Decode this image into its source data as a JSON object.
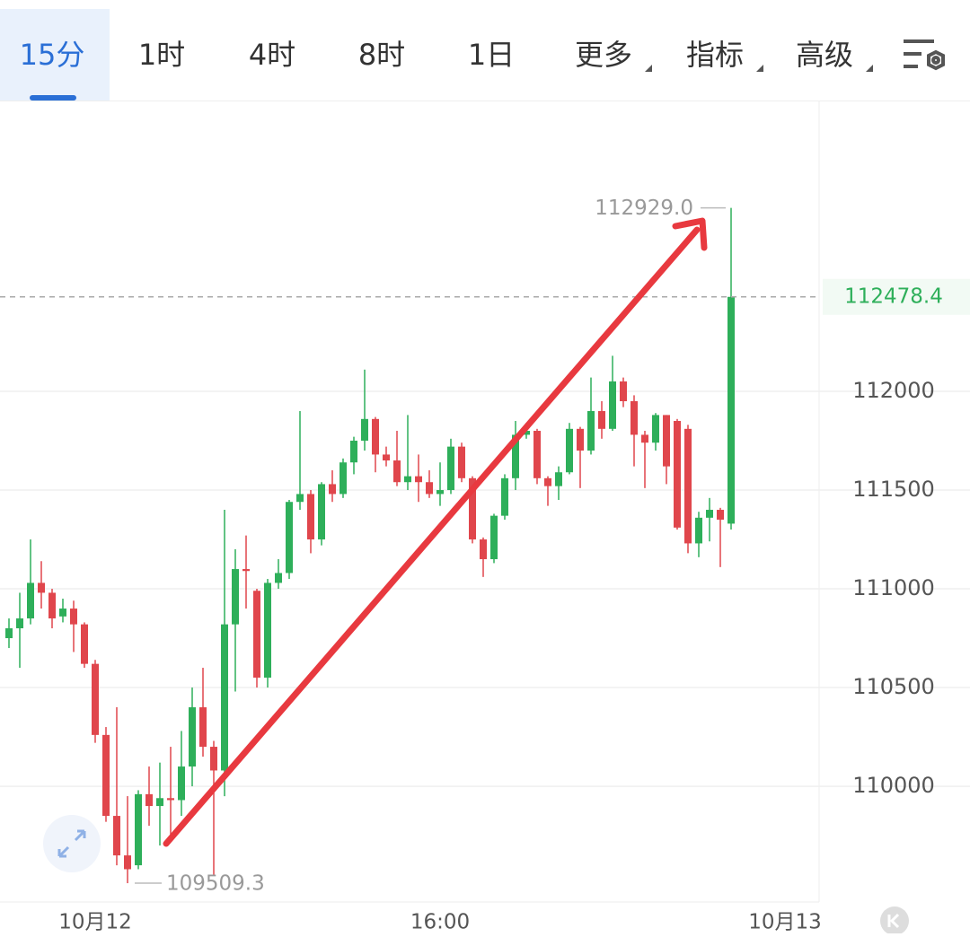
{
  "tabs": [
    "15分",
    "1时",
    "4时",
    "8时",
    "1日",
    "更多",
    "指标",
    "高级"
  ],
  "active_tab": 0,
  "dropdown_tabs": [
    5,
    6,
    7
  ],
  "chart_data": {
    "type": "candlestick",
    "categories": [
      null,
      null,
      null,
      null,
      null,
      null,
      null,
      null,
      "10月12",
      null,
      null,
      null,
      null,
      null,
      null,
      null,
      null,
      null,
      null,
      null,
      null,
      null,
      null,
      null,
      null,
      null,
      null,
      null,
      null,
      null,
      null,
      null,
      null,
      null,
      null,
      null,
      null,
      null,
      null,
      null,
      "16:00",
      null,
      null,
      null,
      null,
      null,
      null,
      null,
      null,
      null,
      null,
      null,
      null,
      null,
      null,
      null,
      null,
      null,
      null,
      null,
      null,
      null,
      null,
      null,
      null,
      null,
      null,
      null,
      null,
      null,
      null,
      null,
      "10月13"
    ],
    "open": [
      110750,
      110800,
      110850,
      111030,
      110980,
      110860,
      110900,
      110820,
      110620,
      110260,
      109850,
      109650,
      109600,
      109960,
      109900,
      109940,
      109930,
      110100,
      110400,
      110200,
      110080,
      110820,
      111100,
      110990,
      110550,
      111030,
      111080,
      111440,
      111480,
      111250,
      111530,
      111480,
      111640,
      111750,
      111860,
      111680,
      111650,
      111540,
      111570,
      111540,
      111480,
      111500,
      111720,
      111560,
      111250,
      111150,
      111370,
      111560,
      111780,
      111800,
      111560,
      111520,
      111590,
      111810,
      111700,
      111900,
      111810,
      112050,
      111950,
      111780,
      111740,
      111880,
      111850,
      111810,
      111230,
      111360,
      111400,
      111330,
      null,
      null,
      null,
      null,
      null
    ],
    "high": [
      110850,
      110980,
      111250,
      111140,
      111000,
      110950,
      110940,
      110830,
      110640,
      110300,
      110400,
      109950,
      109980,
      110100,
      110120,
      110200,
      110280,
      110500,
      110600,
      110230,
      111400,
      111200,
      111270,
      111000,
      111050,
      111150,
      111450,
      111900,
      111500,
      111540,
      111600,
      111660,
      111770,
      112110,
      111870,
      111720,
      111800,
      111880,
      111680,
      111600,
      111640,
      111760,
      111740,
      111570,
      111260,
      111380,
      111580,
      111850,
      111840,
      111810,
      111570,
      111620,
      111840,
      111820,
      112070,
      111950,
      112180,
      112070,
      111980,
      111800,
      111890,
      111880,
      111860,
      111830,
      111390,
      111460,
      111410,
      112929.0,
      null,
      null,
      null,
      null,
      null
    ],
    "low": [
      110700,
      110600,
      110820,
      110900,
      110800,
      110830,
      110680,
      110600,
      110220,
      109820,
      109600,
      109509.3,
      109580,
      109800,
      109700,
      109750,
      109850,
      110000,
      110150,
      109550,
      109950,
      110480,
      110900,
      110500,
      110500,
      111000,
      111050,
      111400,
      111180,
      111220,
      111440,
      111460,
      111580,
      111700,
      111590,
      111620,
      111520,
      111500,
      111440,
      111460,
      111420,
      111480,
      111540,
      111230,
      111060,
      111130,
      111350,
      111500,
      111760,
      111530,
      111420,
      111450,
      111580,
      111510,
      111680,
      111760,
      111800,
      111920,
      111620,
      111510,
      111700,
      111530,
      111300,
      111180,
      111160,
      111240,
      111110,
      111300,
      null,
      null,
      null,
      null,
      null
    ],
    "close": [
      110800,
      110850,
      111030,
      110980,
      110850,
      110900,
      110820,
      110620,
      110260,
      109850,
      109650,
      109580,
      109960,
      109900,
      109940,
      109930,
      110100,
      110400,
      110200,
      110080,
      110820,
      111100,
      111090,
      110550,
      111030,
      111080,
      111440,
      111480,
      111250,
      111530,
      111480,
      111640,
      111750,
      111860,
      111680,
      111650,
      111540,
      111570,
      111540,
      111480,
      111500,
      111720,
      111560,
      111250,
      111150,
      111370,
      111560,
      111780,
      111800,
      111560,
      111520,
      111590,
      111810,
      111700,
      111900,
      111810,
      112050,
      111950,
      111780,
      111740,
      111880,
      111620,
      111310,
      111230,
      111360,
      111400,
      111350,
      112478.4,
      null,
      null,
      null,
      null,
      null
    ],
    "up_color": "#2eaf5a",
    "down_color": "#e0464c",
    "ylim": [
      109414,
      113459
    ],
    "yticks": [
      110000,
      110500,
      111000,
      111500,
      112000
    ],
    "grid": true,
    "annotations": [
      {
        "value": 112929.0,
        "label": "112929.0"
      },
      {
        "value": 109509.3,
        "label": "109509.3"
      }
    ],
    "last_price": {
      "value": 112478.4,
      "label": "112478.4"
    }
  }
}
